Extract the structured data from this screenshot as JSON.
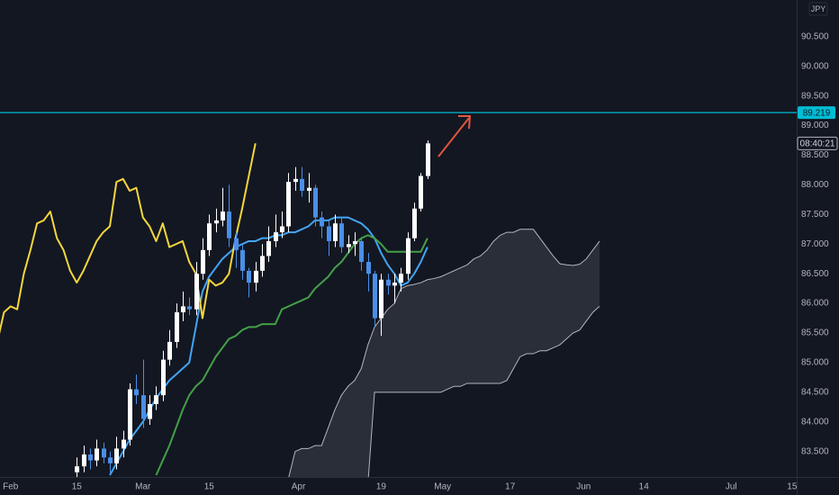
{
  "chart_data": {
    "type": "candlestick",
    "currency": "JPY",
    "x": [
      10,
      11,
      12,
      13,
      14,
      15,
      16,
      17,
      18,
      19,
      20,
      21,
      22,
      23,
      24,
      25,
      26,
      27,
      28,
      29,
      30,
      31,
      32,
      33,
      34,
      35,
      36,
      37,
      38,
      39,
      40,
      41,
      42,
      43,
      44,
      45,
      46,
      47,
      48,
      49,
      50,
      51,
      52,
      53,
      54,
      55,
      56,
      57,
      58,
      59,
      60,
      61,
      62,
      63
    ],
    "open": [
      83.15,
      83.25,
      83.45,
      83.35,
      83.55,
      83.4,
      83.3,
      83.55,
      83.7,
      84.55,
      84.45,
      84.05,
      84.3,
      84.45,
      85.05,
      85.35,
      85.85,
      85.95,
      85.9,
      86.5,
      86.9,
      87.35,
      87.4,
      87.55,
      87.1,
      86.9,
      86.55,
      86.35,
      86.55,
      86.8,
      87.05,
      87.2,
      87.3,
      88.05,
      88.1,
      87.9,
      87.95,
      87.45,
      87.3,
      87.05,
      87.35,
      86.95,
      87.0,
      87.05,
      86.7,
      86.5,
      85.75,
      86.4,
      86.3,
      86.35,
      86.5,
      87.1,
      87.6,
      88.15
    ],
    "high": [
      83.4,
      83.6,
      83.55,
      83.7,
      83.65,
      83.5,
      83.75,
      83.85,
      84.65,
      84.8,
      85.05,
      84.45,
      84.6,
      85.2,
      85.55,
      86.0,
      86.2,
      86.1,
      86.7,
      87.1,
      87.5,
      87.6,
      87.95,
      88.0,
      87.2,
      87.0,
      86.6,
      86.7,
      87.0,
      87.3,
      87.5,
      87.55,
      88.2,
      88.3,
      88.3,
      88.2,
      88.0,
      87.55,
      87.4,
      87.5,
      87.45,
      87.15,
      87.2,
      87.1,
      86.85,
      86.55,
      86.5,
      86.5,
      86.5,
      86.6,
      87.2,
      87.7,
      88.2,
      88.75
    ],
    "low": [
      83.05,
      83.15,
      83.2,
      83.25,
      83.3,
      83.1,
      83.2,
      83.4,
      83.6,
      84.3,
      83.9,
      83.95,
      84.2,
      84.35,
      84.95,
      85.25,
      85.7,
      85.8,
      85.8,
      86.4,
      86.8,
      87.2,
      87.3,
      86.95,
      86.6,
      86.4,
      86.1,
      86.2,
      86.45,
      86.7,
      86.95,
      87.1,
      87.2,
      87.9,
      87.8,
      87.7,
      87.3,
      87.1,
      86.8,
      86.95,
      86.85,
      86.85,
      86.8,
      86.55,
      86.2,
      85.6,
      85.45,
      86.15,
      86.0,
      86.2,
      86.4,
      87.05,
      87.55,
      88.1
    ],
    "close": [
      83.25,
      83.45,
      83.35,
      83.55,
      83.4,
      83.3,
      83.55,
      83.7,
      84.55,
      84.45,
      84.05,
      84.3,
      84.45,
      85.05,
      85.35,
      85.85,
      85.95,
      85.9,
      86.5,
      86.9,
      87.35,
      87.4,
      87.55,
      87.1,
      86.9,
      86.55,
      86.35,
      86.55,
      86.8,
      87.05,
      87.2,
      87.3,
      88.05,
      88.1,
      87.9,
      87.95,
      87.45,
      87.3,
      87.05,
      87.35,
      86.95,
      87.0,
      87.05,
      86.7,
      86.5,
      85.75,
      86.4,
      86.3,
      86.35,
      86.5,
      87.1,
      87.6,
      88.15,
      88.7
    ],
    "up_color": "#ffffff",
    "down_color": "#4a8fe7",
    "series": [
      {
        "color": "#42a5f5",
        "x": [
          15,
          16,
          17,
          18,
          19,
          20,
          21,
          22,
          23,
          24,
          25,
          26,
          27,
          28,
          29,
          30,
          31,
          32,
          33,
          34,
          35,
          36,
          37,
          38,
          39,
          40,
          41,
          42,
          43,
          44,
          45,
          46,
          47,
          48,
          49,
          50,
          51,
          52,
          53,
          54,
          55,
          56,
          57,
          58,
          59,
          60,
          61,
          62,
          63
        ],
        "values": [
          83.1,
          83.3,
          83.5,
          83.7,
          83.85,
          84.0,
          84.2,
          84.4,
          84.55,
          84.7,
          84.8,
          84.9,
          85.0,
          85.6,
          86.2,
          86.45,
          86.6,
          86.75,
          86.85,
          86.95,
          87.0,
          87.05,
          87.05,
          87.1,
          87.1,
          87.15,
          87.15,
          87.2,
          87.2,
          87.25,
          87.3,
          87.4,
          87.4,
          87.4,
          87.45,
          87.45,
          87.45,
          87.4,
          87.35,
          87.25,
          87.1,
          86.85,
          86.65,
          86.5,
          86.3,
          86.35,
          86.5,
          86.7,
          86.95
        ]
      },
      {
        "color": "#43a047",
        "x": [
          22,
          23,
          24,
          25,
          26,
          27,
          28,
          29,
          30,
          31,
          32,
          33,
          34,
          35,
          36,
          37,
          38,
          39,
          40,
          41,
          42,
          43,
          44,
          45,
          46,
          47,
          48,
          49,
          50,
          51,
          52,
          53,
          54,
          55,
          56,
          57,
          58,
          59,
          60,
          61,
          62,
          63
        ],
        "values": [
          83.1,
          83.35,
          83.6,
          83.9,
          84.2,
          84.45,
          84.6,
          84.7,
          84.9,
          85.1,
          85.25,
          85.4,
          85.45,
          85.55,
          85.6,
          85.6,
          85.65,
          85.65,
          85.65,
          85.9,
          85.95,
          86.0,
          86.05,
          86.1,
          86.25,
          86.35,
          86.45,
          86.6,
          86.7,
          86.85,
          87.0,
          87.1,
          87.15,
          87.1,
          87.0,
          86.87,
          86.87,
          86.87,
          86.87,
          86.87,
          86.87,
          87.1
        ]
      },
      {
        "color": "#f5d63d",
        "x": [
          -2,
          -1,
          0,
          1,
          2,
          3,
          4,
          5,
          6,
          7,
          8,
          9,
          10,
          11,
          12,
          13,
          14,
          15,
          16,
          17,
          18,
          19,
          20,
          21,
          22,
          23,
          24,
          25,
          26,
          27,
          28,
          29,
          30,
          31,
          32,
          33,
          34,
          35,
          36,
          37
        ],
        "values": [
          85.35,
          85.85,
          85.95,
          85.9,
          86.5,
          86.9,
          87.35,
          87.4,
          87.55,
          87.1,
          86.9,
          86.55,
          86.35,
          86.55,
          86.8,
          87.05,
          87.2,
          87.3,
          88.05,
          88.1,
          87.9,
          87.95,
          87.45,
          87.3,
          87.05,
          87.35,
          86.95,
          87.0,
          87.05,
          86.7,
          86.5,
          85.75,
          86.4,
          86.3,
          86.35,
          86.5,
          87.1,
          87.6,
          88.15,
          88.7
        ]
      }
    ],
    "cloud": {
      "color": "#3a3e4a",
      "line_color": "#b2b5be",
      "x": [
        42,
        43,
        44,
        45,
        46,
        47,
        48,
        49,
        50,
        51,
        52,
        53,
        54,
        55,
        56,
        57,
        58,
        59,
        60,
        61,
        62,
        63,
        64,
        65,
        66,
        67,
        68,
        69,
        70,
        71,
        72,
        73,
        74,
        75,
        76,
        77,
        78,
        79,
        80,
        81,
        82,
        83,
        84,
        85,
        86,
        87,
        88,
        89
      ],
      "upper": [
        83.05,
        83.5,
        83.55,
        83.55,
        83.6,
        83.6,
        83.9,
        84.2,
        84.45,
        84.6,
        84.7,
        84.9,
        85.3,
        85.6,
        85.75,
        85.9,
        86.0,
        86.25,
        86.3,
        86.32,
        86.35,
        86.4,
        86.42,
        86.45,
        86.5,
        86.55,
        86.6,
        86.65,
        86.75,
        86.8,
        86.9,
        87.05,
        87.15,
        87.2,
        87.2,
        87.25,
        87.25,
        87.25,
        87.1,
        86.95,
        86.8,
        86.67,
        86.65,
        86.64,
        86.66,
        86.75,
        86.9,
        87.05
      ],
      "lower": [
        82.95,
        82.95,
        82.95,
        82.95,
        82.95,
        82.95,
        82.95,
        82.95,
        82.95,
        82.95,
        82.95,
        82.95,
        82.95,
        84.5,
        84.5,
        84.5,
        84.5,
        84.5,
        84.5,
        84.5,
        84.5,
        84.5,
        84.5,
        84.5,
        84.55,
        84.6,
        84.6,
        84.65,
        84.65,
        84.65,
        84.65,
        84.65,
        84.65,
        84.7,
        84.9,
        85.1,
        85.15,
        85.15,
        85.2,
        85.2,
        85.25,
        85.3,
        85.4,
        85.5,
        85.55,
        85.7,
        85.85,
        85.95
      ]
    },
    "hline": 89.219,
    "hline_color": "#00bcd4",
    "countdown": "08:40:21",
    "xlim": [
      -1.6,
      118.8
    ],
    "ylim": [
      83.07,
      91.12
    ],
    "grid": false,
    "xticks": [
      {
        "value": 0,
        "label": "Feb"
      },
      {
        "value": 10,
        "label": "15"
      },
      {
        "value": 20,
        "label": "Mar"
      },
      {
        "value": 30,
        "label": "15"
      },
      {
        "value": 43.5,
        "label": "Apr"
      },
      {
        "value": 56,
        "label": "19"
      },
      {
        "value": 65.3,
        "label": "May"
      },
      {
        "value": 75.5,
        "label": "17"
      },
      {
        "value": 86.6,
        "label": "Jun"
      },
      {
        "value": 95.7,
        "label": "14"
      },
      {
        "value": 108.9,
        "label": "Jul"
      },
      {
        "value": 118.1,
        "label": "15"
      }
    ],
    "yticks": [
      {
        "value": 83.5,
        "label": "83.500"
      },
      {
        "value": 84,
        "label": "84.000"
      },
      {
        "value": 84.5,
        "label": "84.500"
      },
      {
        "value": 85,
        "label": "85.000"
      },
      {
        "value": 85.5,
        "label": "85.500"
      },
      {
        "value": 86,
        "label": "86.000"
      },
      {
        "value": 86.5,
        "label": "86.500"
      },
      {
        "value": 87,
        "label": "87.000"
      },
      {
        "value": 87.5,
        "label": "87.500"
      },
      {
        "value": 88,
        "label": "88.000"
      },
      {
        "value": 88.5,
        "label": "88.500"
      },
      {
        "value": 89,
        "label": "89.000"
      },
      {
        "value": 89.5,
        "label": "89.500"
      },
      {
        "value": 90,
        "label": "90.000"
      },
      {
        "value": 90.5,
        "label": "90.500"
      }
    ]
  }
}
